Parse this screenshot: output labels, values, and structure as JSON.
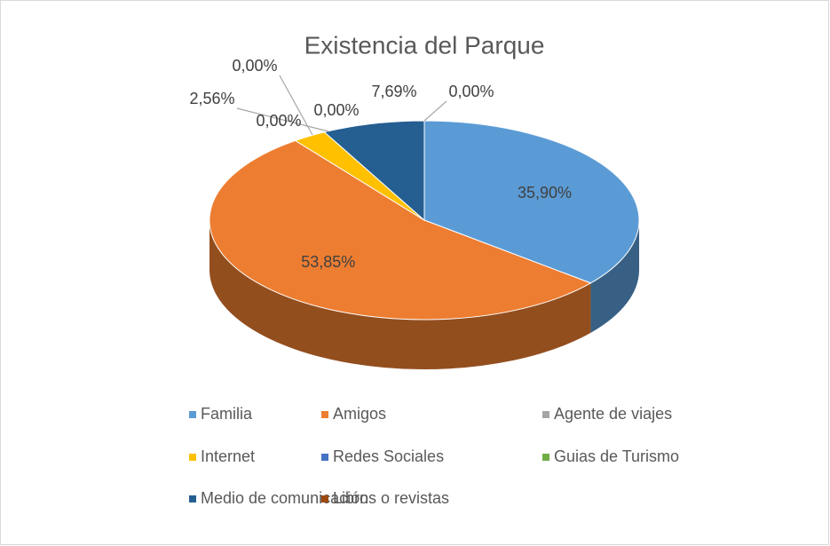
{
  "chart_data": {
    "type": "pie",
    "title": "Existencia del Parque",
    "categories": [
      "Familia",
      "Amigos",
      "Agente de viajes",
      "Internet",
      "Redes Sociales",
      "Guias de Turismo",
      "Medio de comunicación",
      "Libros o revistas"
    ],
    "values": [
      35.9,
      53.85,
      0.0,
      2.56,
      0.0,
      0.0,
      7.69,
      0.0
    ],
    "value_labels": [
      "35,90%",
      "53,85%",
      "0,00%",
      "2,56%",
      "0,00%",
      "0,00%",
      "7,69%",
      "0,00%"
    ],
    "colors": [
      "#5b9bd5",
      "#ed7d31",
      "#a5a5a5",
      "#ffc000",
      "#4472c4",
      "#70ad47",
      "#255e91",
      "#9e480e"
    ],
    "legend": "bottom"
  }
}
